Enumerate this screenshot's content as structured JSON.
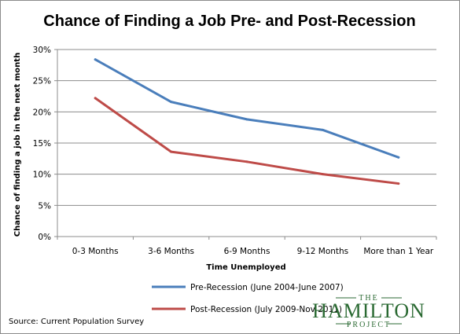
{
  "chart_data": {
    "type": "line",
    "title": "Chance of Finding a Job Pre- and Post-Recession",
    "xlabel": "Time Unemployed",
    "ylabel": "Chance of finding a job in the next month",
    "categories": [
      "0-3 Months",
      "3-6 Months",
      "6-9 Months",
      "9-12 Months",
      "More than 1 Year"
    ],
    "ylim": [
      0,
      30
    ],
    "yticks": [
      "0%",
      "5%",
      "10%",
      "15%",
      "20%",
      "25%",
      "30%"
    ],
    "grid": true,
    "legend_position": "bottom",
    "series": [
      {
        "name": "Pre-Recession (June 2004-June 2007)",
        "color": "#4a7ebb",
        "values": [
          28.4,
          21.6,
          18.8,
          17.1,
          12.7
        ]
      },
      {
        "name": "Post-Recession (July 2009-Nov 2011)",
        "color": "#be4b48",
        "values": [
          22.2,
          13.6,
          12.0,
          10.0,
          8.5
        ]
      }
    ]
  },
  "source": "Source: Current Population Survey",
  "logo": {
    "top": "THE",
    "main": "HAMILTON",
    "bottom": "PROJECT"
  }
}
